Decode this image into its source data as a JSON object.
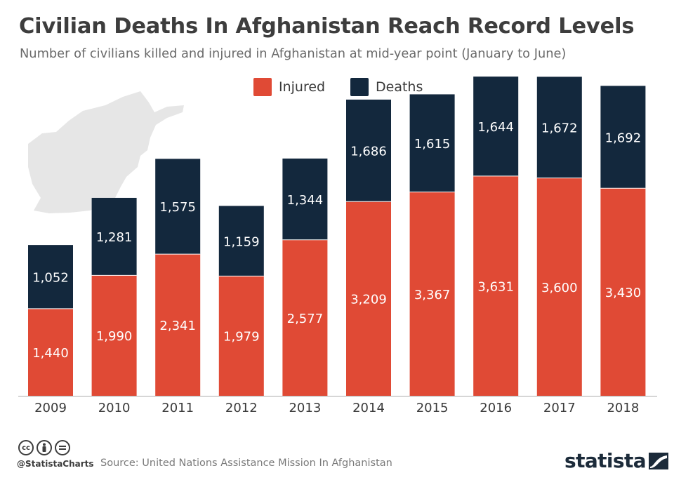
{
  "header": {
    "title": "Civilian Deaths In Afghanistan Reach Record Levels",
    "subtitle": "Number of civilians killed and injured in Afghanistan at mid-year point (January to June)"
  },
  "colors": {
    "injured": "#e04a35",
    "deaths": "#13283d",
    "axis": "#aaaaaa",
    "map": "#e6e6e6"
  },
  "chart_data": {
    "type": "bar",
    "stacked": true,
    "categories": [
      "2009",
      "2010",
      "2011",
      "2012",
      "2013",
      "2014",
      "2015",
      "2016",
      "2017",
      "2018"
    ],
    "series": [
      {
        "name": "Injured",
        "values": [
          1440,
          1990,
          2341,
          1979,
          2577,
          3209,
          3367,
          3631,
          3600,
          3430
        ]
      },
      {
        "name": "Deaths",
        "values": [
          1052,
          1281,
          1575,
          1159,
          1344,
          1686,
          1615,
          1644,
          1672,
          1692
        ]
      }
    ],
    "value_labels": {
      "Injured": [
        "1,440",
        "1,990",
        "2,341",
        "1,979",
        "2,577",
        "3,209",
        "3,367",
        "3,631",
        "3,600",
        "3,430"
      ],
      "Deaths": [
        "1,052",
        "1,281",
        "1,575",
        "1,159",
        "1,344",
        "1,686",
        "1,615",
        "1,644",
        "1,672",
        "1,692"
      ]
    },
    "title": "Civilian Deaths In Afghanistan Reach Record Levels",
    "xlabel": "",
    "ylabel": "",
    "ylim": [
      0,
      5300
    ],
    "grid": false,
    "legend_position": "top-center"
  },
  "legend": {
    "injured_label": "Injured",
    "deaths_label": "Deaths"
  },
  "footer": {
    "handle": "@StatistaCharts",
    "source": "Source: United Nations Assistance Mission In Afghanistan",
    "brand": "statista",
    "icons": [
      "cc-icon",
      "by-icon",
      "nd-icon"
    ]
  }
}
